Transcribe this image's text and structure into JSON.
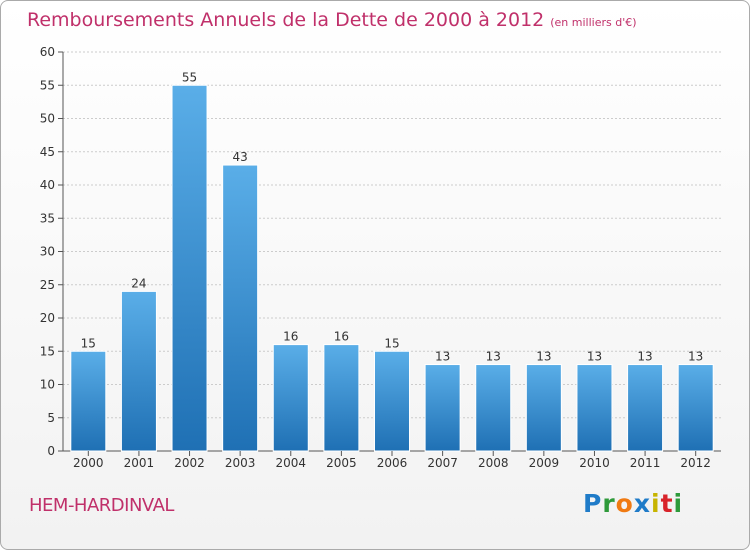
{
  "header": {
    "title": "Remboursements Annuels de la Dette de 2000 à 2012",
    "subtitle": "(en milliers d'€)"
  },
  "footer": {
    "city": "HEM-HARDINVAL",
    "logo": "Proxiti",
    "logo_colors": [
      "#1f7bc8",
      "#2e9a3a",
      "#f07a12",
      "#1f7bc8",
      "#c7b400",
      "#d8232a",
      "#2e9a3a"
    ]
  },
  "colors": {
    "bar_top": "#5aaee8",
    "bar_bottom": "#1f70b4",
    "grid": "#cccccc",
    "axis": "#555555",
    "title": "#c0306a"
  },
  "chart_data": {
    "type": "bar",
    "title": "Remboursements Annuels de la Dette de 2000 à 2012",
    "subtitle": "(en milliers d'€)",
    "xlabel": "",
    "ylabel": "",
    "categories": [
      "2000",
      "2001",
      "2002",
      "2003",
      "2004",
      "2005",
      "2006",
      "2007",
      "2008",
      "2009",
      "2010",
      "2011",
      "2012"
    ],
    "values": [
      15,
      24,
      55,
      43,
      16,
      16,
      15,
      13,
      13,
      13,
      13,
      13,
      13
    ],
    "ylim": [
      0,
      60
    ],
    "yticks": [
      0,
      5,
      10,
      15,
      20,
      25,
      30,
      35,
      40,
      45,
      50,
      55,
      60
    ],
    "grid": true,
    "legend": "none"
  }
}
